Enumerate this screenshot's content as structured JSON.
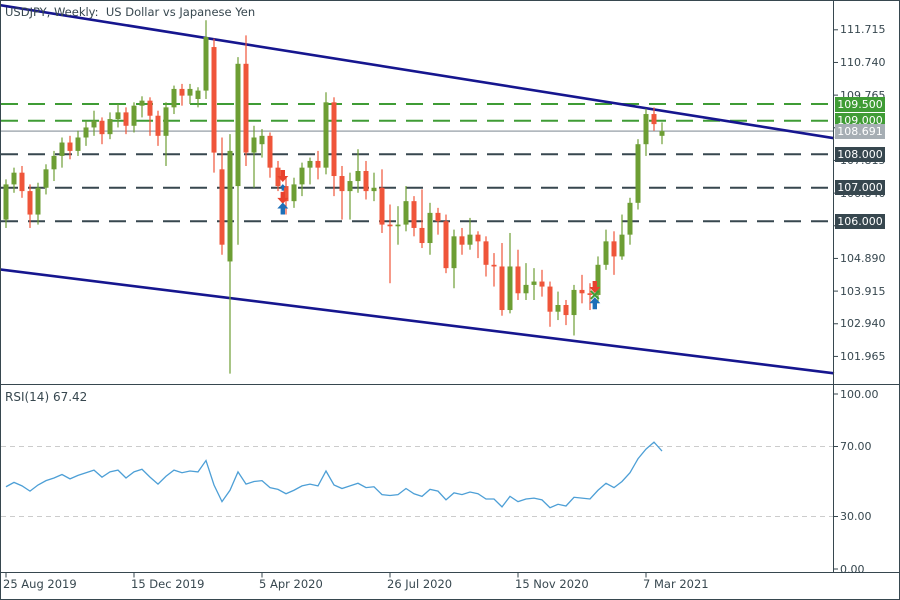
{
  "chart_data": {
    "type": "candlestick",
    "symbol": "USDJPY",
    "timeframe": "Weekly",
    "title": "USDJPY, Weekly:  US Dollar vs Japanese Yen",
    "ohlc_format": [
      "open",
      "high",
      "low",
      "close"
    ],
    "price_axis": {
      "ticks": [
        111.715,
        110.74,
        109.765,
        108.79,
        107.815,
        106.84,
        105.865,
        104.89,
        103.915,
        102.94,
        101.965
      ],
      "tick_step": 0.975,
      "visible_range": [
        101.2,
        112.55
      ]
    },
    "time_axis": {
      "labels": [
        {
          "week": 0,
          "label": "25 Aug 2019"
        },
        {
          "week": 16,
          "label": "15 Dec 2019"
        },
        {
          "week": 32,
          "label": "5 Apr 2020"
        },
        {
          "week": 48,
          "label": "26 Jul 2020"
        },
        {
          "week": 64,
          "label": "15 Nov 2020"
        },
        {
          "week": 80,
          "label": "7 Mar 2021"
        }
      ]
    },
    "levels": [
      {
        "price": 109.5,
        "label": "109.500",
        "kind": "green"
      },
      {
        "price": 109.0,
        "label": "109.000",
        "kind": "green"
      },
      {
        "price": 108.0,
        "label": "108.000",
        "kind": "dark"
      },
      {
        "price": 107.0,
        "label": "107.000",
        "kind": "dark"
      },
      {
        "price": 106.0,
        "label": "106.000",
        "kind": "dark"
      }
    ],
    "current_price": {
      "price": 108.691,
      "label": "108.691"
    },
    "trendlines": [
      {
        "name": "upper-channel",
        "w1": -0.7,
        "p1": 112.45,
        "w2": 103.5,
        "p2": 108.48
      },
      {
        "name": "lower-channel",
        "w1": -0.7,
        "p1": 104.56,
        "w2": 103.5,
        "p2": 101.46
      }
    ],
    "markers": [
      {
        "week": 34.6,
        "price": 107.17,
        "type": "sell"
      },
      {
        "week": 34.6,
        "price": 107.11,
        "type": "buy",
        "size": "small"
      },
      {
        "week": 34.6,
        "price": 106.52,
        "type": "sell"
      },
      {
        "week": 34.6,
        "price": 106.56,
        "type": "buy"
      },
      {
        "week": 73.6,
        "price": 103.86,
        "type": "sell"
      },
      {
        "week": 73.6,
        "price": 103.8,
        "type": "exit"
      },
      {
        "week": 73.6,
        "price": 103.73,
        "type": "buy"
      }
    ],
    "candles": [
      [
        106.05,
        107.25,
        105.8,
        107.1
      ],
      [
        107.1,
        107.6,
        106.85,
        107.45
      ],
      [
        107.45,
        107.65,
        106.7,
        106.9
      ],
      [
        106.9,
        107.1,
        105.8,
        106.2
      ],
      [
        106.2,
        107.15,
        105.9,
        107.0
      ],
      [
        107.0,
        107.7,
        106.8,
        107.55
      ],
      [
        107.55,
        108.1,
        107.2,
        107.95
      ],
      [
        107.95,
        108.5,
        107.6,
        108.35
      ],
      [
        108.35,
        108.55,
        107.85,
        108.1
      ],
      [
        108.1,
        108.7,
        107.95,
        108.5
      ],
      [
        108.5,
        109.0,
        108.25,
        108.8
      ],
      [
        108.8,
        109.3,
        108.55,
        109.0
      ],
      [
        109.0,
        109.1,
        108.3,
        108.6
      ],
      [
        108.6,
        109.25,
        108.45,
        109.05
      ],
      [
        109.05,
        109.5,
        108.8,
        109.25
      ],
      [
        109.25,
        109.4,
        108.6,
        108.85
      ],
      [
        108.85,
        109.55,
        108.65,
        109.45
      ],
      [
        109.45,
        109.73,
        109.1,
        109.6
      ],
      [
        109.6,
        109.7,
        108.55,
        109.15
      ],
      [
        109.15,
        109.3,
        108.25,
        108.55
      ],
      [
        108.55,
        109.55,
        107.65,
        109.4
      ],
      [
        109.4,
        110.05,
        109.2,
        109.95
      ],
      [
        109.95,
        110.1,
        109.45,
        109.75
      ],
      [
        109.75,
        110.1,
        109.5,
        109.95
      ],
      [
        109.65,
        110.0,
        109.4,
        109.9
      ],
      [
        109.9,
        112.0,
        109.65,
        111.5
      ],
      [
        111.2,
        111.45,
        107.45,
        108.05
      ],
      [
        107.55,
        108.5,
        105.0,
        105.3
      ],
      [
        104.8,
        108.6,
        101.45,
        108.1
      ],
      [
        107.05,
        110.9,
        105.3,
        110.7
      ],
      [
        110.7,
        111.55,
        107.65,
        108.05
      ],
      [
        108.05,
        108.85,
        107.0,
        108.5
      ],
      [
        108.3,
        108.75,
        107.9,
        108.55
      ],
      [
        108.55,
        108.65,
        107.3,
        107.6
      ],
      [
        107.6,
        107.8,
        106.9,
        107.05
      ],
      [
        107.05,
        107.3,
        106.2,
        106.6
      ],
      [
        106.6,
        107.3,
        106.4,
        107.1
      ],
      [
        107.1,
        107.75,
        106.75,
        107.6
      ],
      [
        107.6,
        107.9,
        107.1,
        107.8
      ],
      [
        107.8,
        108.1,
        107.25,
        107.6
      ],
      [
        107.6,
        109.85,
        107.4,
        109.55
      ],
      [
        109.55,
        109.7,
        106.75,
        107.35
      ],
      [
        107.35,
        107.65,
        106.05,
        106.9
      ],
      [
        106.9,
        107.45,
        106.05,
        107.2
      ],
      [
        107.2,
        108.15,
        106.85,
        107.5
      ],
      [
        107.5,
        107.8,
        106.65,
        106.9
      ],
      [
        106.9,
        107.45,
        106.6,
        107.0
      ],
      [
        107.0,
        107.55,
        105.65,
        105.9
      ],
      [
        105.9,
        106.5,
        104.15,
        105.85
      ],
      [
        105.85,
        106.45,
        105.3,
        105.9
      ],
      [
        105.9,
        107.05,
        105.7,
        106.6
      ],
      [
        106.6,
        106.75,
        105.55,
        105.8
      ],
      [
        105.8,
        106.95,
        105.2,
        105.35
      ],
      [
        105.35,
        106.55,
        105.0,
        106.25
      ],
      [
        106.25,
        106.4,
        105.6,
        106.0
      ],
      [
        106.0,
        106.2,
        104.45,
        104.6
      ],
      [
        104.6,
        105.75,
        104.0,
        105.55
      ],
      [
        105.55,
        105.8,
        105.0,
        105.3
      ],
      [
        105.3,
        106.1,
        105.15,
        105.6
      ],
      [
        105.6,
        105.7,
        104.9,
        105.4
      ],
      [
        105.4,
        105.55,
        104.35,
        104.7
      ],
      [
        104.7,
        105.05,
        104.05,
        104.65
      ],
      [
        104.65,
        105.35,
        103.18,
        103.35
      ],
      [
        103.35,
        105.65,
        103.25,
        104.65
      ],
      [
        104.65,
        105.15,
        103.65,
        103.85
      ],
      [
        103.85,
        104.75,
        103.65,
        104.1
      ],
      [
        104.1,
        104.6,
        103.65,
        104.2
      ],
      [
        104.2,
        104.55,
        103.75,
        104.05
      ],
      [
        104.05,
        104.2,
        102.85,
        103.3
      ],
      [
        103.3,
        103.9,
        103.05,
        103.5
      ],
      [
        103.5,
        103.65,
        102.9,
        103.2
      ],
      [
        103.2,
        104.1,
        102.59,
        103.95
      ],
      [
        103.95,
        104.4,
        103.55,
        103.85
      ],
      [
        103.85,
        104.15,
        103.35,
        103.8
      ],
      [
        103.8,
        104.95,
        103.55,
        104.7
      ],
      [
        104.7,
        105.75,
        104.55,
        105.4
      ],
      [
        105.4,
        105.7,
        104.4,
        104.95
      ],
      [
        104.95,
        106.2,
        104.85,
        105.6
      ],
      [
        105.6,
        106.7,
        105.3,
        106.55
      ],
      [
        106.55,
        108.45,
        106.35,
        108.3
      ],
      [
        108.3,
        109.36,
        107.95,
        109.2
      ],
      [
        109.2,
        109.4,
        108.7,
        108.9
      ],
      [
        108.55,
        108.95,
        108.3,
        108.69
      ]
    ],
    "rsi": {
      "label": "RSI(14) 67.42",
      "period": 14,
      "last_value": 67.42,
      "axis_ticks": [
        {
          "value": 100,
          "label": "100.00"
        },
        {
          "value": 70,
          "label": "70.00"
        },
        {
          "value": 30,
          "label": "30.00"
        },
        {
          "value": 0,
          "label": "0.00"
        }
      ],
      "guides": [
        70,
        30
      ],
      "values": [
        47.0,
        49.5,
        47.5,
        44.5,
        48.0,
        50.5,
        52.0,
        54.0,
        51.5,
        53.5,
        55.0,
        56.5,
        52.5,
        55.5,
        56.5,
        52.0,
        55.5,
        57.0,
        52.5,
        48.5,
        53.0,
        56.5,
        55.0,
        56.0,
        55.5,
        62.0,
        48.0,
        38.5,
        45.0,
        55.5,
        48.5,
        50.0,
        50.5,
        46.5,
        45.5,
        43.0,
        45.0,
        47.5,
        48.5,
        47.5,
        56.0,
        48.0,
        46.0,
        47.5,
        49.0,
        46.5,
        47.0,
        42.5,
        42.0,
        42.5,
        46.0,
        43.0,
        41.5,
        45.5,
        44.5,
        39.5,
        43.5,
        42.5,
        44.0,
        43.0,
        40.0,
        40.0,
        35.5,
        41.5,
        38.5,
        40.0,
        40.5,
        39.5,
        35.0,
        37.0,
        36.0,
        41.0,
        40.5,
        40.0,
        45.0,
        49.0,
        46.5,
        50.0,
        55.0,
        63.0,
        68.5,
        72.5,
        67.42
      ]
    }
  },
  "colors": {
    "bull": "#6d9e34",
    "bear": "#ef553a",
    "trendline": "#16168f",
    "level_green": "#3f9c35",
    "level_dark": "#37474f",
    "current_price": "#a6aeb4",
    "rsi_line": "#4d9fd6",
    "rsi_grid": "#cccccc",
    "axis_text": "#37474f",
    "buy_marker": "#1d6fb8",
    "sell_marker": "#e8412d",
    "exit_marker": "#3f9c35",
    "border": "#37474f",
    "background": "#ffffff"
  }
}
